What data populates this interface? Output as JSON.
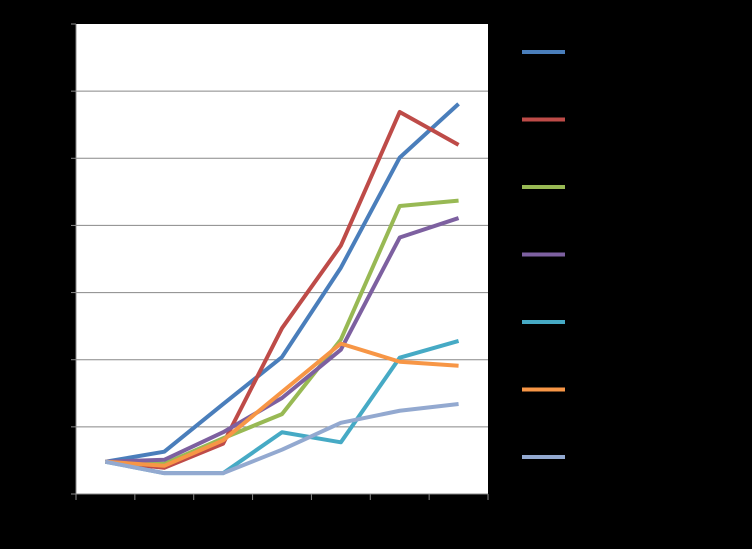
{
  "chart_data": {
    "type": "line",
    "categories": [
      null,
      null,
      null,
      null,
      null,
      null,
      null
    ],
    "series": [
      {
        "color": "#4a7ebb",
        "values": [
          0.48,
          0.63,
          1.34,
          2.04,
          3.37,
          5.01,
          5.81
        ]
      },
      {
        "color": "#be4b48",
        "values": [
          0.48,
          0.39,
          0.75,
          2.47,
          3.7,
          5.69,
          5.2
        ]
      },
      {
        "color": "#98b954",
        "values": [
          0.48,
          0.45,
          0.83,
          1.19,
          2.3,
          4.29,
          4.37
        ]
      },
      {
        "color": "#7d60a0",
        "values": [
          0.48,
          0.51,
          0.92,
          1.43,
          2.15,
          3.82,
          4.11
        ]
      },
      {
        "color": "#46aac5",
        "values": [
          0.48,
          0.31,
          0.31,
          0.92,
          0.77,
          2.03,
          2.28
        ]
      },
      {
        "color": "#f79646",
        "values": [
          0.48,
          0.42,
          0.8,
          1.52,
          2.24,
          1.97,
          1.91
        ]
      },
      {
        "color": "#93a9d0",
        "values": [
          0.48,
          0.31,
          0.31,
          0.66,
          1.06,
          1.24,
          1.34
        ]
      }
    ],
    "ylim": [
      0,
      7
    ],
    "yticks": [
      0,
      1,
      2,
      3,
      4,
      5,
      6,
      7
    ],
    "grid": true,
    "legend": "right"
  }
}
